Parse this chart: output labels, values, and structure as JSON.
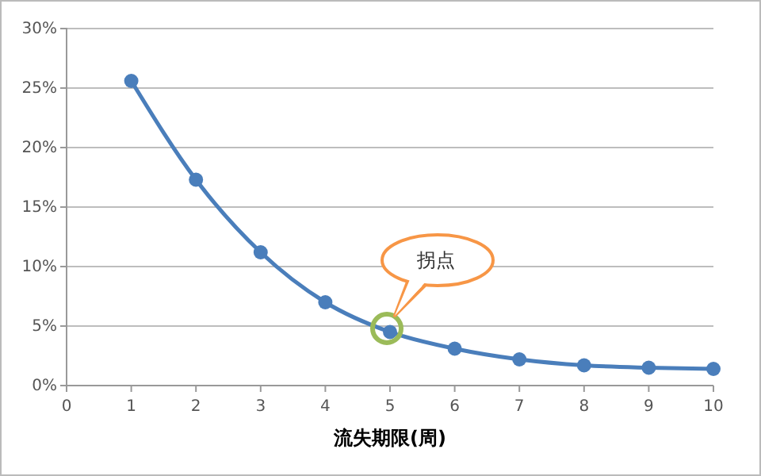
{
  "chart_data": {
    "type": "line",
    "xlabel": "流失期限(周)",
    "x": [
      1,
      2,
      3,
      4,
      5,
      6,
      7,
      8,
      9,
      10
    ],
    "series": [
      {
        "color": "#4a7ebb",
        "values": [
          25.6,
          17.3,
          11.2,
          7.0,
          4.5,
          3.1,
          2.2,
          1.7,
          1.5,
          1.4
        ]
      }
    ],
    "xlim": [
      0,
      10
    ],
    "xticks": [
      0,
      1,
      2,
      3,
      4,
      5,
      6,
      7,
      8,
      9,
      10
    ],
    "ylim": [
      0,
      30
    ],
    "yticks": [
      {
        "value": 0,
        "label": "0%"
      },
      {
        "value": 5,
        "label": "5%"
      },
      {
        "value": 10,
        "label": "10%"
      },
      {
        "value": 15,
        "label": "15%"
      },
      {
        "value": 20,
        "label": "20%"
      },
      {
        "value": 25,
        "label": "25%"
      },
      {
        "value": 30,
        "label": "30%"
      }
    ],
    "grid": "y",
    "marker": "circle",
    "line_style": "solid",
    "annotations": [
      "拐点"
    ]
  }
}
